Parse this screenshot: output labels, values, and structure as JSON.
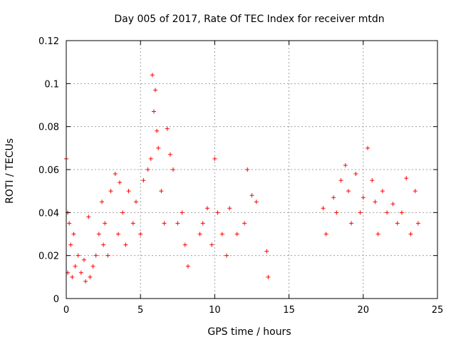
{
  "chart_data": {
    "type": "scatter",
    "title": "Day 005 of 2017, Rate Of TEC Index for receiver mtdn",
    "xlabel": "GPS time / hours",
    "ylabel": "ROTI / TECUs",
    "xlim": [
      0,
      25
    ],
    "ylim": [
      0,
      0.12
    ],
    "x_ticks": [
      "0",
      "5",
      "10",
      "15",
      "20",
      "25"
    ],
    "y_ticks": [
      "0",
      "0.02",
      "0.04",
      "0.06",
      "0.08",
      "0.1",
      "0.12"
    ],
    "grid": true,
    "legend": "none",
    "marker": "+",
    "series": [
      {
        "color": "#ff0000",
        "x": [
          0.0,
          0.1,
          0.1,
          0.2,
          0.3,
          0.4,
          0.5,
          0.6,
          0.8,
          1.0,
          1.2,
          1.3,
          1.5,
          1.6,
          1.8,
          2.0,
          2.2,
          2.4,
          2.5,
          2.6,
          2.8,
          3.0,
          3.3,
          3.5,
          3.6,
          3.8,
          4.0,
          4.2,
          4.5,
          4.7,
          5.0,
          5.2,
          5.5,
          5.7,
          5.8,
          5.9,
          6.0,
          6.1,
          6.2,
          6.4,
          6.6,
          6.8,
          7.0,
          7.2,
          7.5,
          7.8,
          8.0,
          8.2,
          9.0,
          9.2,
          9.5,
          9.8,
          10.0,
          10.2,
          10.5,
          10.8,
          11.0,
          11.5,
          12.0,
          12.2,
          12.5,
          12.8,
          13.5,
          13.6,
          17.3,
          17.5,
          18.0,
          18.2,
          18.5,
          18.8,
          19.0,
          19.2,
          19.5,
          19.8,
          20.0,
          20.3,
          20.6,
          20.8,
          21.0,
          21.3,
          21.6,
          22.0,
          22.3,
          22.6,
          22.9,
          23.2,
          23.5,
          23.7
        ],
        "y": [
          0.065,
          0.04,
          0.012,
          0.035,
          0.025,
          0.01,
          0.03,
          0.015,
          0.02,
          0.012,
          0.018,
          0.008,
          0.038,
          0.01,
          0.015,
          0.02,
          0.03,
          0.045,
          0.025,
          0.035,
          0.02,
          0.05,
          0.058,
          0.03,
          0.054,
          0.04,
          0.025,
          0.05,
          0.035,
          0.045,
          0.03,
          0.055,
          0.06,
          0.065,
          0.104,
          0.087,
          0.097,
          0.078,
          0.07,
          0.05,
          0.035,
          0.079,
          0.067,
          0.06,
          0.035,
          0.04,
          0.025,
          0.015,
          0.03,
          0.035,
          0.042,
          0.025,
          0.065,
          0.04,
          0.03,
          0.02,
          0.042,
          0.03,
          0.035,
          0.06,
          0.048,
          0.045,
          0.022,
          0.01,
          0.042,
          0.03,
          0.047,
          0.04,
          0.055,
          0.062,
          0.05,
          0.035,
          0.058,
          0.04,
          0.047,
          0.07,
          0.055,
          0.045,
          0.03,
          0.05,
          0.04,
          0.044,
          0.035,
          0.04,
          0.056,
          0.03,
          0.05,
          0.035
        ]
      }
    ]
  }
}
